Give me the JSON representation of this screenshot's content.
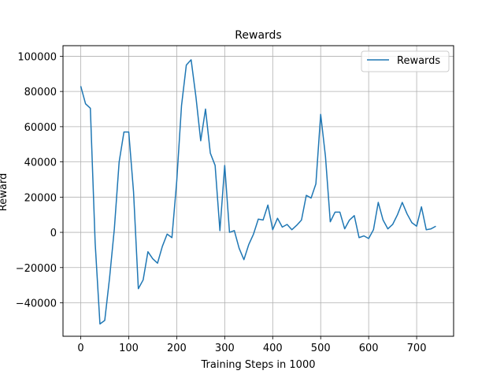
{
  "chart_data": {
    "type": "line",
    "title": "Rewards",
    "xlabel": "Training Steps in 1000",
    "ylabel": "Reward",
    "xlim": [
      -37,
      777
    ],
    "ylim": [
      -59000,
      106000
    ],
    "xticks": [
      0,
      100,
      200,
      300,
      400,
      500,
      600,
      700
    ],
    "yticks": [
      -40000,
      -20000,
      0,
      20000,
      40000,
      60000,
      80000,
      100000
    ],
    "ytick_labels": [
      "−40000",
      "−20000",
      "0",
      "20000",
      "40000",
      "60000",
      "80000",
      "100000"
    ],
    "grid": true,
    "legend": {
      "position": "top-right"
    },
    "series": [
      {
        "name": "Rewards",
        "color": "#1f77b4",
        "x": [
          0,
          10,
          20,
          30,
          40,
          50,
          60,
          70,
          80,
          90,
          100,
          110,
          120,
          130,
          140,
          150,
          160,
          170,
          180,
          190,
          200,
          210,
          220,
          230,
          240,
          250,
          260,
          270,
          280,
          290,
          300,
          310,
          320,
          330,
          340,
          350,
          360,
          370,
          380,
          390,
          400,
          410,
          420,
          430,
          440,
          450,
          460,
          470,
          480,
          490,
          500,
          510,
          520,
          530,
          540,
          550,
          560,
          570,
          580,
          590,
          600,
          610,
          620,
          630,
          640,
          650,
          660,
          670,
          680,
          690,
          700,
          710,
          720,
          730,
          740
        ],
        "y": [
          83000,
          73000,
          70500,
          -6000,
          -52000,
          -50000,
          -26000,
          2000,
          40000,
          57000,
          57000,
          23000,
          -32000,
          -27000,
          -11000,
          -15000,
          -17500,
          -8000,
          -1000,
          -3000,
          29000,
          72000,
          95000,
          98000,
          77000,
          52000,
          70000,
          45000,
          38000,
          1000,
          38000,
          0,
          1000,
          -9000,
          -15500,
          -7000,
          -1000,
          7500,
          7000,
          15500,
          1500,
          8000,
          3000,
          4500,
          1500,
          4000,
          7000,
          21000,
          19500,
          27500,
          67000,
          43000,
          6000,
          11500,
          11500,
          2000,
          7000,
          9500,
          -3000,
          -2000,
          -3500,
          1500,
          17000,
          7000,
          2000,
          4500,
          10000,
          17000,
          10500,
          5500,
          3500,
          14500,
          1500,
          2000,
          3500
        ]
      }
    ]
  }
}
